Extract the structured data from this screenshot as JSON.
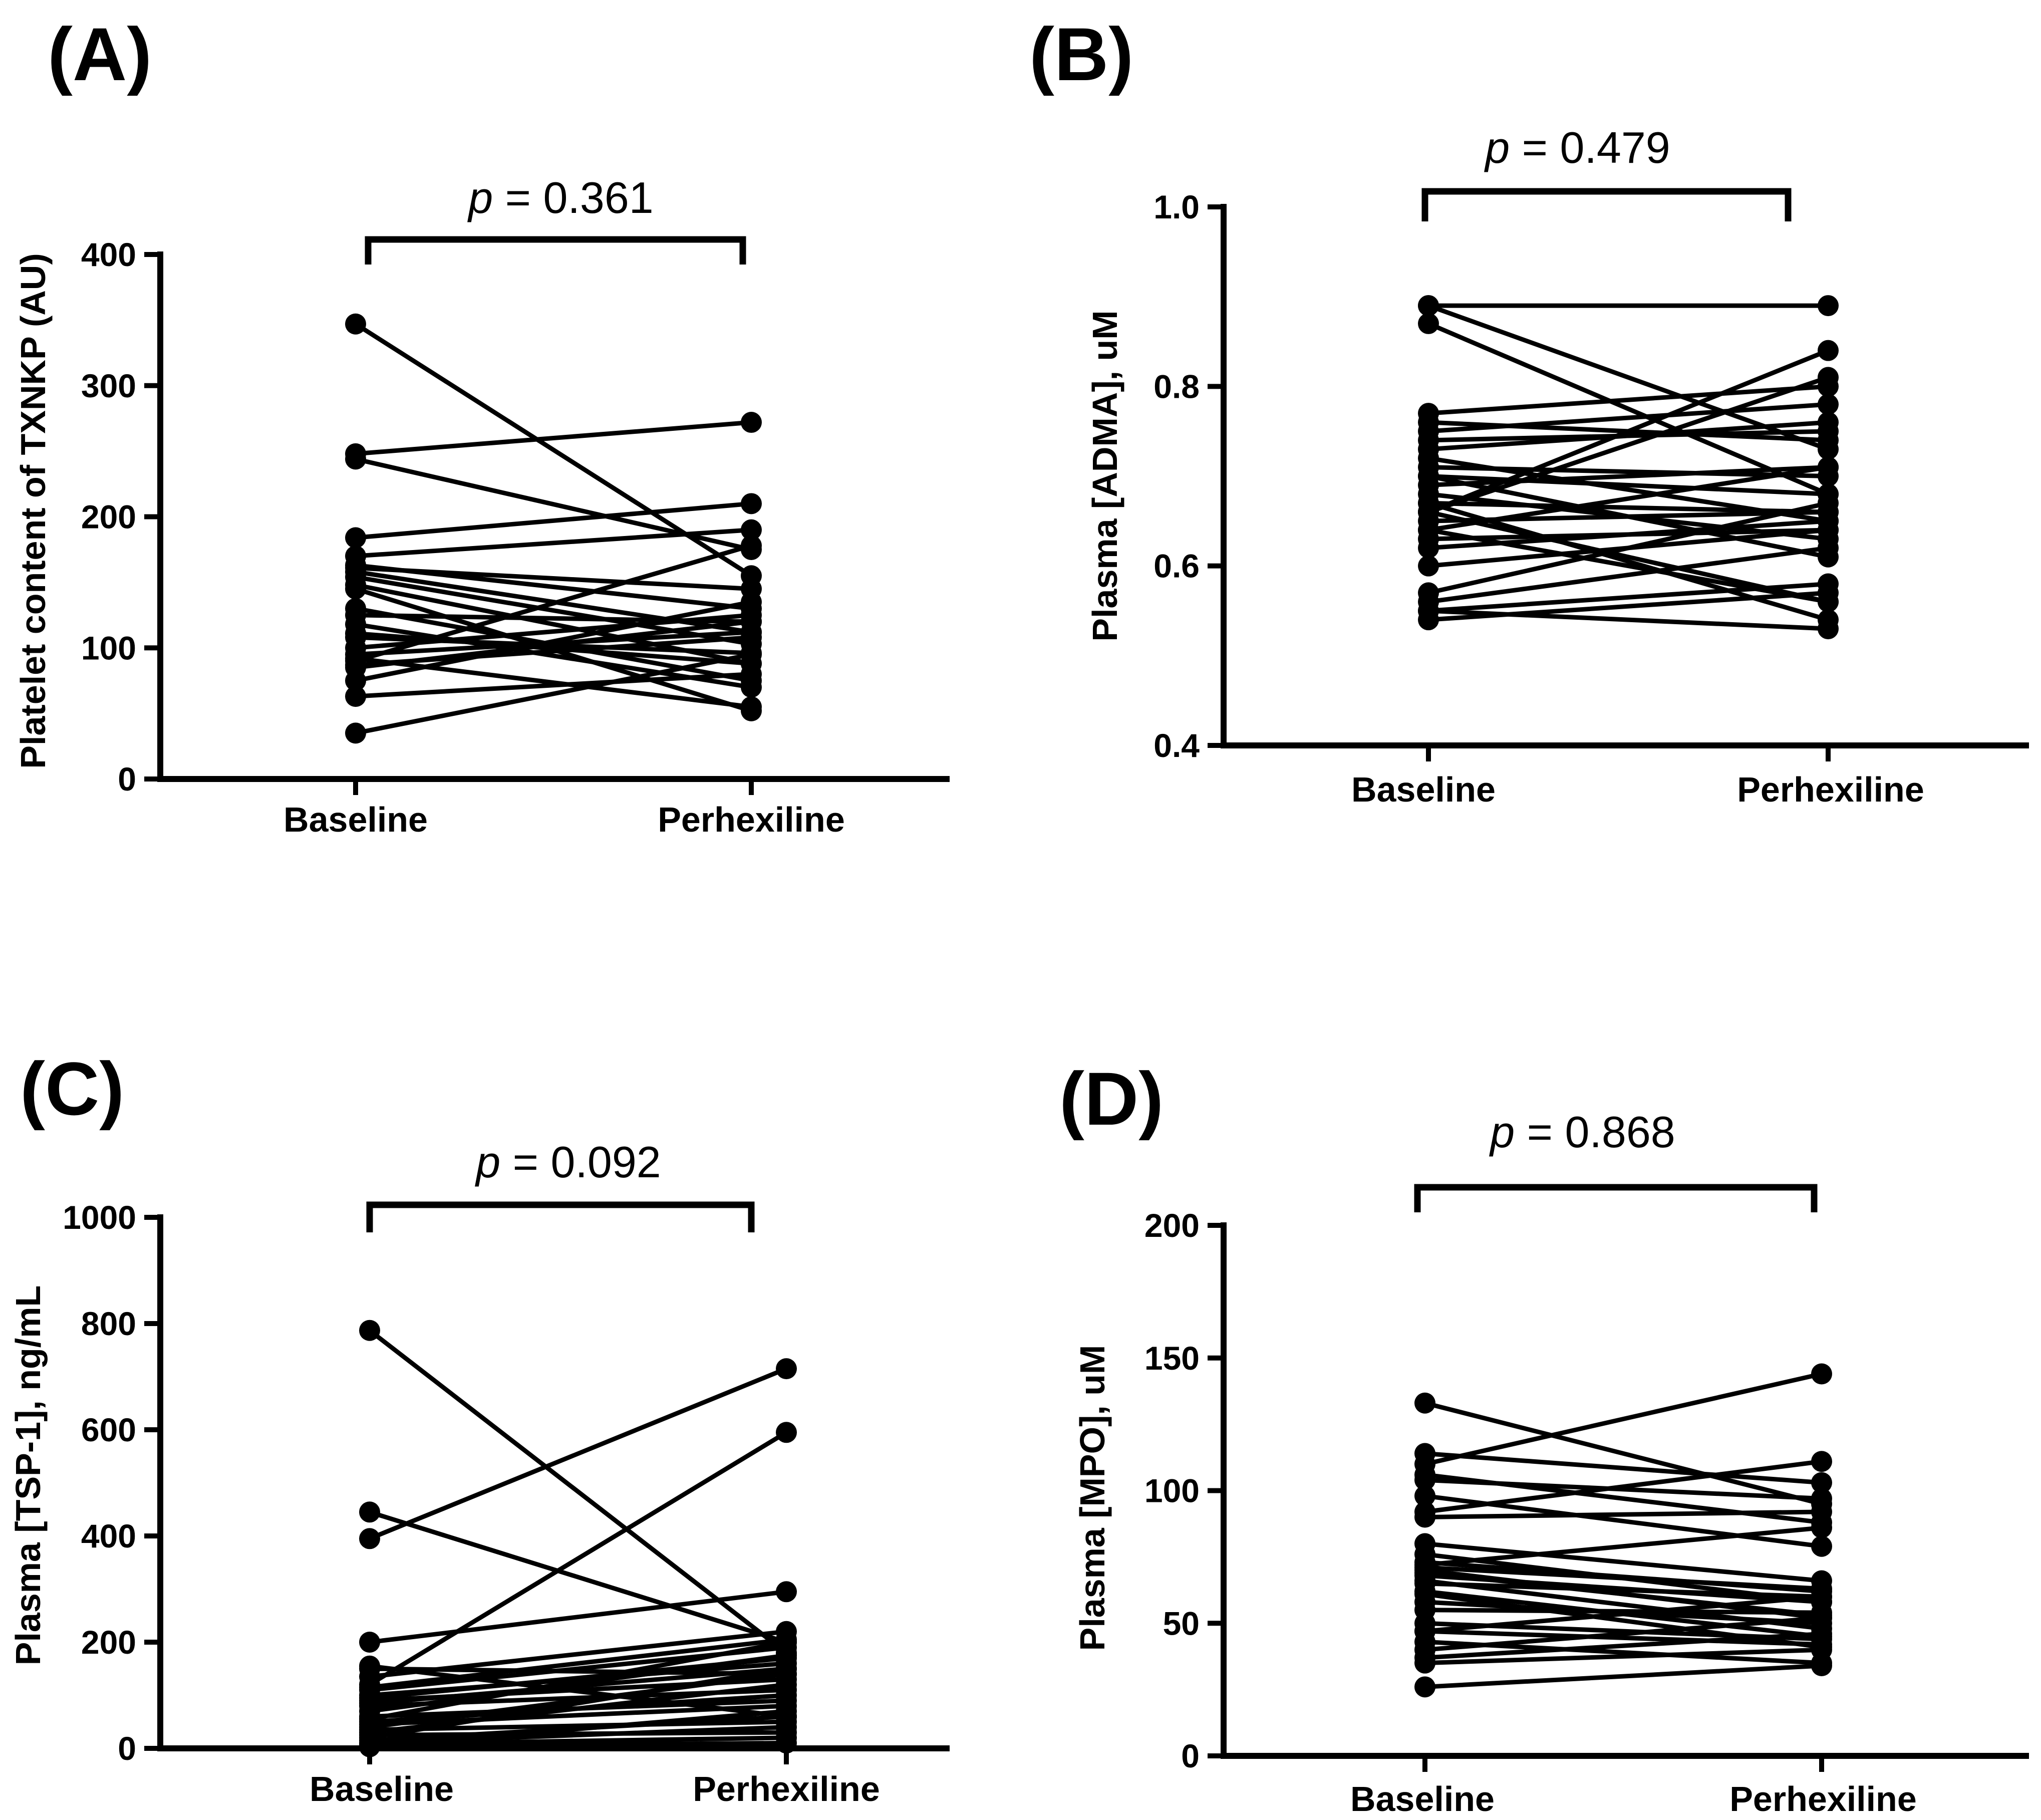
{
  "chart_data": [
    {
      "panel": "(A)",
      "type": "scatter",
      "ylabel": "Platelet content of TXNKP (AU)",
      "categories": [
        "Baseline",
        "Perhexiline"
      ],
      "ylim": [
        0,
        400
      ],
      "yticks": [
        "0",
        "100",
        "200",
        "300",
        "400"
      ],
      "p_prefix": "p",
      "p_value": " = 0.361",
      "pairs": [
        [
          347,
          155
        ],
        [
          248,
          272
        ],
        [
          244,
          175
        ],
        [
          184,
          210
        ],
        [
          170,
          190
        ],
        [
          163,
          130
        ],
        [
          161,
          145
        ],
        [
          158,
          112
        ],
        [
          154,
          103
        ],
        [
          148,
          88
        ],
        [
          130,
          75
        ],
        [
          125,
          120
        ],
        [
          118,
          70
        ],
        [
          108,
          96
        ],
        [
          100,
          125
        ],
        [
          95,
          112
        ],
        [
          92,
          55
        ],
        [
          90,
          178
        ],
        [
          87,
          108
        ],
        [
          85,
          120
        ],
        [
          75,
          135
        ],
        [
          63,
          80
        ],
        [
          35,
          95
        ],
        [
          145,
          52
        ],
        [
          111,
          88
        ]
      ]
    },
    {
      "panel": "(B)",
      "type": "scatter",
      "ylabel": "Plasma [ADMA], uM",
      "categories": [
        "Baseline",
        "Perhexiline"
      ],
      "ylim": [
        0.4,
        1.0
      ],
      "yticks": [
        "0.4",
        "0.6",
        "0.8",
        "1.0"
      ],
      "p_prefix": "p",
      "p_value": " = 0.479",
      "pairs": [
        [
          0.89,
          0.89
        ],
        [
          0.89,
          0.73
        ],
        [
          0.87,
          0.68
        ],
        [
          0.77,
          0.8
        ],
        [
          0.76,
          0.74
        ],
        [
          0.75,
          0.78
        ],
        [
          0.74,
          0.75
        ],
        [
          0.73,
          0.76
        ],
        [
          0.72,
          0.65
        ],
        [
          0.71,
          0.7
        ],
        [
          0.7,
          0.61
        ],
        [
          0.7,
          0.68
        ],
        [
          0.69,
          0.71
        ],
        [
          0.68,
          0.63
        ],
        [
          0.67,
          0.66
        ],
        [
          0.66,
          0.81
        ],
        [
          0.66,
          0.56
        ],
        [
          0.65,
          0.66
        ],
        [
          0.64,
          0.71
        ],
        [
          0.63,
          0.64
        ],
        [
          0.62,
          0.65
        ],
        [
          0.6,
          0.64
        ],
        [
          0.56,
          0.62
        ],
        [
          0.55,
          0.58
        ],
        [
          0.54,
          0.57
        ],
        [
          0.55,
          0.53
        ],
        [
          0.66,
          0.84
        ],
        [
          0.64,
          0.56
        ],
        [
          0.67,
          0.54
        ],
        [
          0.57,
          0.67
        ]
      ]
    },
    {
      "panel": "(C)",
      "type": "scatter",
      "ylabel": "Plasma [TSP-1], ng/mL",
      "categories": [
        "Baseline",
        "Perhexiline"
      ],
      "ylim": [
        0,
        1000
      ],
      "yticks": [
        "0",
        "200",
        "400",
        "600",
        "800",
        "1000"
      ],
      "p_prefix": "p",
      "p_value": " = 0.092",
      "pairs": [
        [
          787,
          180
        ],
        [
          445,
          200
        ],
        [
          395,
          715
        ],
        [
          200,
          295
        ],
        [
          155,
          60
        ],
        [
          150,
          140
        ],
        [
          135,
          220
        ],
        [
          120,
          595
        ],
        [
          115,
          205
        ],
        [
          110,
          190
        ],
        [
          100,
          160
        ],
        [
          95,
          170
        ],
        [
          90,
          130
        ],
        [
          85,
          150
        ],
        [
          80,
          110
        ],
        [
          70,
          175
        ],
        [
          60,
          90
        ],
        [
          55,
          200
        ],
        [
          50,
          100
        ],
        [
          45,
          80
        ],
        [
          40,
          140
        ],
        [
          35,
          50
        ],
        [
          30,
          120
        ],
        [
          25,
          30
        ],
        [
          20,
          150
        ],
        [
          15,
          60
        ],
        [
          10,
          40
        ],
        [
          8,
          20
        ],
        [
          5,
          10
        ],
        [
          3,
          70
        ]
      ]
    },
    {
      "panel": "(D)",
      "type": "scatter",
      "ylabel": "Plasma [MPO], uM",
      "categories": [
        "Baseline",
        "Perhexiline"
      ],
      "ylim": [
        0,
        200
      ],
      "yticks": [
        "0",
        "50",
        "100",
        "150",
        "200"
      ],
      "p_prefix": "p",
      "p_value": " = 0.868",
      "pairs": [
        [
          133,
          95
        ],
        [
          114,
          103
        ],
        [
          110,
          144
        ],
        [
          106,
          88
        ],
        [
          104,
          97
        ],
        [
          98,
          79
        ],
        [
          92,
          111
        ],
        [
          90,
          92
        ],
        [
          80,
          66
        ],
        [
          76,
          58
        ],
        [
          73,
          62
        ],
        [
          71,
          63
        ],
        [
          70,
          52
        ],
        [
          68,
          58
        ],
        [
          66,
          48
        ],
        [
          65,
          60
        ],
        [
          62,
          45
        ],
        [
          58,
          50
        ],
        [
          55,
          54
        ],
        [
          50,
          44
        ],
        [
          47,
          42
        ],
        [
          43,
          35
        ],
        [
          40,
          52
        ],
        [
          37,
          46
        ],
        [
          35,
          40
        ],
        [
          26,
          34
        ],
        [
          72,
          86
        ],
        [
          61,
          41
        ],
        [
          69,
          53
        ],
        [
          47,
          60
        ]
      ]
    }
  ]
}
